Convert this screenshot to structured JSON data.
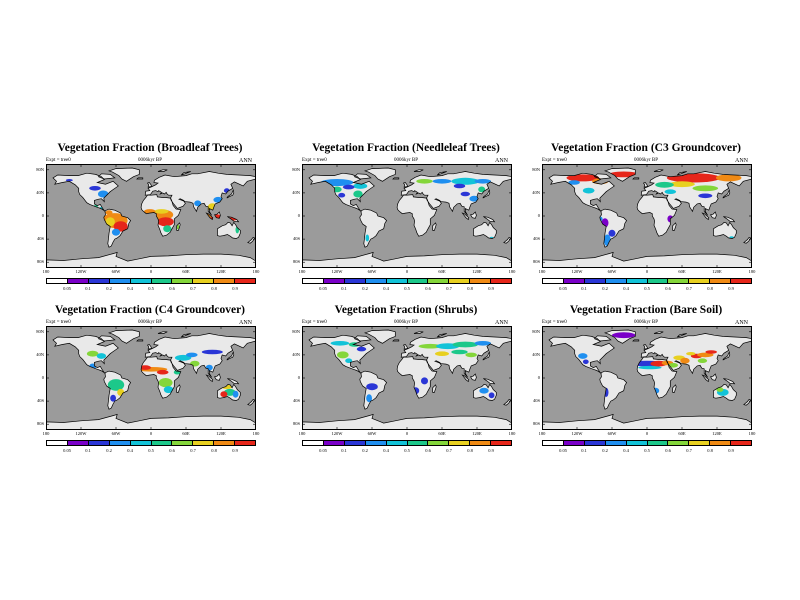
{
  "panels": [
    {
      "title": "Vegetation Fraction (Broadleaf Trees)",
      "expt": "Expt = tree0",
      "time": "0006kyr BP",
      "season": "ANN",
      "type": "broadleaf"
    },
    {
      "title": "Vegetation Fraction (Needleleaf Trees)",
      "expt": "Expt = tree0",
      "time": "0006kyr BP",
      "season": "ANN",
      "type": "needleleaf"
    },
    {
      "title": "Vegetation Fraction (C3 Groundcover)",
      "expt": "Expt = tree0",
      "time": "0006kyr BP",
      "season": "ANN",
      "type": "c3"
    },
    {
      "title": "Vegetation Fraction (C4 Groundcover)",
      "expt": "Expt = tree0",
      "time": "0006kyr BP",
      "season": "ANN",
      "type": "c4"
    },
    {
      "title": "Vegetation Fraction (Shrubs)",
      "expt": "Expt = tree0",
      "time": "0006kyr BP",
      "season": "ANN",
      "type": "shrubs"
    },
    {
      "title": "Vegetation Fraction (Bare Soil)",
      "expt": "Expt = tree0",
      "time": "0006kyr BP",
      "season": "ANN",
      "type": "bare"
    }
  ],
  "lat_labels": [
    "80N",
    "40N",
    "0",
    "40S",
    "80S"
  ],
  "lon_labels": [
    "180",
    "120W",
    "60W",
    "0",
    "60E",
    "120E",
    "180"
  ],
  "colorbar_labels": [
    "0.05",
    "0.1",
    "0.2",
    "0.4",
    "0.5",
    "0.6",
    "0.7",
    "0.8",
    "0.9"
  ],
  "colorbar_colors": [
    "#ffffff",
    "#7a00c8",
    "#2a36d6",
    "#1f8ff0",
    "#12c3d8",
    "#1cc88a",
    "#84d63a",
    "#e8d020",
    "#f08a14",
    "#e6261a"
  ],
  "colors": {
    "ocean": "#9b9b9b",
    "land": "#e9e9e9"
  }
}
